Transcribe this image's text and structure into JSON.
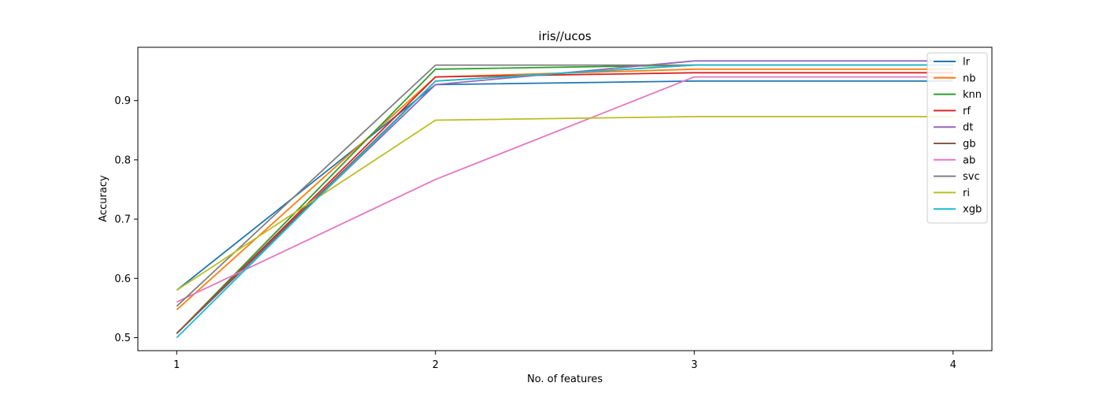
{
  "chart_data": {
    "type": "line",
    "title": "iris//ucos",
    "xlabel": "No. of features",
    "ylabel": "Accuracy",
    "x": [
      1,
      2,
      3,
      4
    ],
    "xlim": [
      0.85,
      4.15
    ],
    "ylim": [
      0.478,
      0.99
    ],
    "xticks": [
      "1",
      "2",
      "3",
      "4"
    ],
    "yticks": [
      "0.5",
      "0.6",
      "0.7",
      "0.8",
      "0.9"
    ],
    "grid": false,
    "legend_position": "top-right",
    "series": [
      {
        "name": "lr",
        "color": "#1f77b4",
        "values": [
          0.58,
          0.927,
          0.933,
          0.933
        ]
      },
      {
        "name": "nb",
        "color": "#ff7f0e",
        "values": [
          0.547,
          0.94,
          0.953,
          0.953
        ]
      },
      {
        "name": "knn",
        "color": "#2ca02c",
        "values": [
          0.507,
          0.953,
          0.96,
          0.96
        ]
      },
      {
        "name": "rf",
        "color": "#d62728",
        "values": [
          0.507,
          0.94,
          0.947,
          0.947
        ]
      },
      {
        "name": "dt",
        "color": "#9467bd",
        "values": [
          0.507,
          0.927,
          0.967,
          0.967
        ]
      },
      {
        "name": "gb",
        "color": "#8c564b",
        "values": [
          0.507,
          0.933,
          0.96,
          0.96
        ]
      },
      {
        "name": "ab",
        "color": "#e377c2",
        "values": [
          0.56,
          0.767,
          0.94,
          0.94
        ]
      },
      {
        "name": "svc",
        "color": "#7f7f7f",
        "values": [
          0.553,
          0.96,
          0.96,
          0.96
        ]
      },
      {
        "name": "ri",
        "color": "#bcbd22",
        "values": [
          0.58,
          0.867,
          0.873,
          0.873
        ]
      },
      {
        "name": "xgb",
        "color": "#17becf",
        "values": [
          0.5,
          0.933,
          0.96,
          0.96
        ]
      }
    ]
  }
}
